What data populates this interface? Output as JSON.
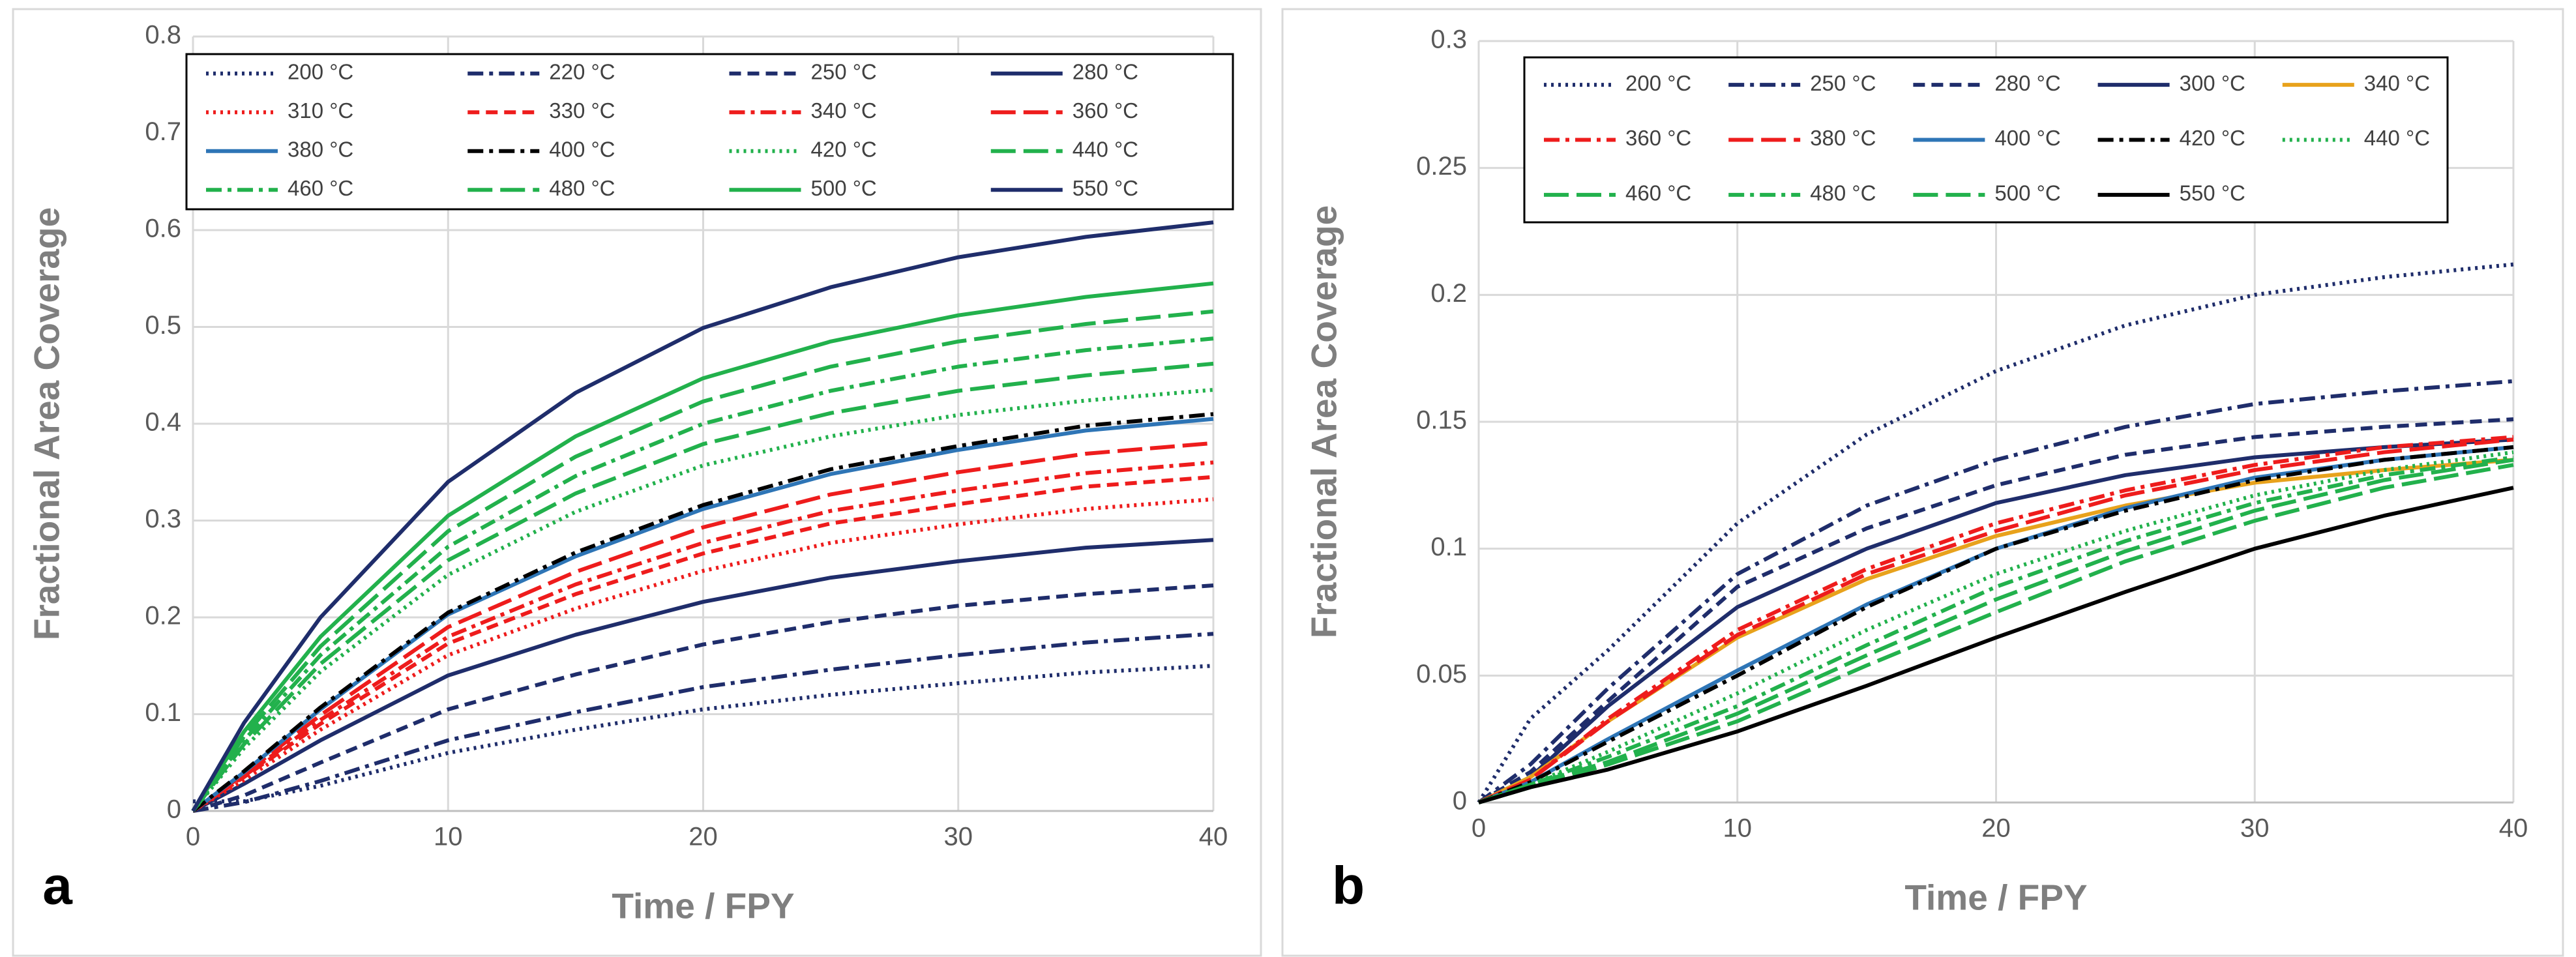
{
  "chart_data": [
    {
      "type": "line",
      "label": "a",
      "xlabel": "Time / FPY",
      "ylabel": "Fractional Area Coverage",
      "x": [
        0,
        2,
        5,
        10,
        15,
        20,
        25,
        30,
        35,
        40
      ],
      "xlim": [
        0,
        40
      ],
      "xticks": [
        0,
        10,
        20,
        30,
        40
      ],
      "ylim": [
        0,
        0.8
      ],
      "yticks": [
        0,
        0.1,
        0.2,
        0.3,
        0.4,
        0.5,
        0.6,
        0.7,
        0.8
      ],
      "grid": true,
      "legend": "top",
      "series": [
        {
          "name": "200 °C",
          "color": "#1f2d6b",
          "dash": "dot",
          "values": [
            0.01,
            0.01,
            0.026,
            0.06,
            0.084,
            0.105,
            0.12,
            0.132,
            0.143,
            0.15
          ]
        },
        {
          "name": "220 °C",
          "color": "#1f2d6b",
          "dash": "dashdot",
          "values": [
            0,
            0.009,
            0.031,
            0.073,
            0.102,
            0.128,
            0.146,
            0.161,
            0.174,
            0.183
          ]
        },
        {
          "name": "250 °C",
          "color": "#1f2d6b",
          "dash": "dash",
          "values": [
            0,
            0.016,
            0.05,
            0.105,
            0.141,
            0.172,
            0.195,
            0.212,
            0.224,
            0.233
          ]
        },
        {
          "name": "280 °C",
          "color": "#1f2d6b",
          "dash": "solid",
          "values": [
            0,
            0.028,
            0.073,
            0.14,
            0.182,
            0.216,
            0.241,
            0.258,
            0.272,
            0.28
          ]
        },
        {
          "name": "310 °C",
          "color": "#ee1c1c",
          "dash": "dot",
          "values": [
            0,
            0.032,
            0.084,
            0.161,
            0.209,
            0.248,
            0.277,
            0.296,
            0.312,
            0.322
          ]
        },
        {
          "name": "330 °C",
          "color": "#ee1c1c",
          "dash": "dash",
          "values": [
            0,
            0.035,
            0.09,
            0.173,
            0.224,
            0.266,
            0.297,
            0.317,
            0.335,
            0.345
          ]
        },
        {
          "name": "340 °C",
          "color": "#ee1c1c",
          "dash": "dashdot",
          "values": [
            0,
            0.036,
            0.094,
            0.18,
            0.234,
            0.277,
            0.31,
            0.331,
            0.349,
            0.36
          ]
        },
        {
          "name": "360 °C",
          "color": "#ee1c1c",
          "dash": "longdash",
          "values": [
            0,
            0.038,
            0.099,
            0.19,
            0.247,
            0.293,
            0.327,
            0.35,
            0.369,
            0.38
          ]
        },
        {
          "name": "380 °C",
          "color": "#2e75b6",
          "dash": "solid",
          "values": [
            0,
            0.04,
            0.105,
            0.203,
            0.263,
            0.312,
            0.348,
            0.373,
            0.393,
            0.405
          ]
        },
        {
          "name": "400 °C",
          "color": "#000000",
          "dash": "dashdot",
          "values": [
            0,
            0.041,
            0.107,
            0.205,
            0.267,
            0.316,
            0.353,
            0.377,
            0.398,
            0.41
          ]
        },
        {
          "name": "420 °C",
          "color": "#22b14c",
          "dash": "dot",
          "values": [
            0,
            0.065,
            0.144,
            0.244,
            0.309,
            0.357,
            0.387,
            0.409,
            0.424,
            0.435
          ]
        },
        {
          "name": "440 °C",
          "color": "#22b14c",
          "dash": "longdash",
          "values": [
            0,
            0.069,
            0.152,
            0.259,
            0.328,
            0.379,
            0.411,
            0.434,
            0.45,
            0.462
          ]
        },
        {
          "name": "460 °C",
          "color": "#22b14c",
          "dash": "dashdot",
          "values": [
            0,
            0.073,
            0.161,
            0.273,
            0.346,
            0.4,
            0.434,
            0.459,
            0.476,
            0.488
          ]
        },
        {
          "name": "480 °C",
          "color": "#22b14c",
          "dash": "longdash",
          "values": [
            0,
            0.077,
            0.17,
            0.289,
            0.366,
            0.423,
            0.459,
            0.485,
            0.503,
            0.516
          ]
        },
        {
          "name": "500 °C",
          "color": "#22b14c",
          "dash": "solid",
          "values": [
            0,
            0.082,
            0.18,
            0.305,
            0.387,
            0.447,
            0.485,
            0.512,
            0.531,
            0.545
          ]
        },
        {
          "name": "550 °C",
          "color": "#1f2d6b",
          "dash": "solid",
          "values": [
            0,
            0.091,
            0.2,
            0.34,
            0.432,
            0.499,
            0.541,
            0.572,
            0.593,
            0.608
          ]
        }
      ]
    },
    {
      "type": "line",
      "label": "b",
      "xlabel": "Time / FPY",
      "ylabel": "Fractional Area Coverage",
      "x": [
        0,
        2,
        5,
        10,
        15,
        20,
        25,
        30,
        35,
        40
      ],
      "xlim": [
        0,
        40
      ],
      "xticks": [
        0,
        10,
        20,
        30,
        40
      ],
      "ylim": [
        0,
        0.3
      ],
      "yticks": [
        0,
        0.05,
        0.1,
        0.15,
        0.2,
        0.25,
        0.3
      ],
      "grid": true,
      "legend": "top",
      "series": [
        {
          "name": "200 °C",
          "color": "#1f2d6b",
          "dash": "dot",
          "values": [
            0,
            0.033,
            0.06,
            0.11,
            0.145,
            0.17,
            0.188,
            0.2,
            0.207,
            0.212
          ]
        },
        {
          "name": "250 °C",
          "color": "#1f2d6b",
          "dash": "dashdot",
          "values": [
            0,
            0.015,
            0.045,
            0.09,
            0.117,
            0.135,
            0.148,
            0.157,
            0.162,
            0.166
          ]
        },
        {
          "name": "280 °C",
          "color": "#1f2d6b",
          "dash": "dash",
          "values": [
            0,
            0.012,
            0.04,
            0.085,
            0.108,
            0.125,
            0.137,
            0.144,
            0.148,
            0.151
          ]
        },
        {
          "name": "300 °C",
          "color": "#1f2d6b",
          "dash": "solid",
          "values": [
            0,
            0.01,
            0.038,
            0.077,
            0.1,
            0.118,
            0.129,
            0.136,
            0.14,
            0.143
          ]
        },
        {
          "name": "340 °C",
          "color": "#e8a21c",
          "dash": "solid",
          "values": [
            0,
            0.01,
            0.032,
            0.065,
            0.088,
            0.105,
            0.117,
            0.126,
            0.131,
            0.135
          ]
        },
        {
          "name": "360 °C",
          "color": "#ee1c1c",
          "dash": "dashdot",
          "values": [
            0,
            0.009,
            0.033,
            0.068,
            0.092,
            0.11,
            0.123,
            0.133,
            0.14,
            0.144
          ]
        },
        {
          "name": "380 °C",
          "color": "#ee1c1c",
          "dash": "longdash",
          "values": [
            0,
            0.009,
            0.032,
            0.066,
            0.09,
            0.107,
            0.121,
            0.131,
            0.138,
            0.143
          ]
        },
        {
          "name": "400 °C",
          "color": "#2e75b6",
          "dash": "solid",
          "values": [
            0,
            0.008,
            0.025,
            0.052,
            0.078,
            0.1,
            0.116,
            0.128,
            0.135,
            0.14
          ]
        },
        {
          "name": "420 °C",
          "color": "#000000",
          "dash": "dashdot",
          "values": [
            0,
            0.008,
            0.024,
            0.05,
            0.077,
            0.1,
            0.115,
            0.127,
            0.135,
            0.14
          ]
        },
        {
          "name": "440 °C",
          "color": "#22b14c",
          "dash": "dot",
          "values": [
            0,
            0.007,
            0.02,
            0.043,
            0.068,
            0.09,
            0.107,
            0.121,
            0.131,
            0.138
          ]
        },
        {
          "name": "460 °C",
          "color": "#22b14c",
          "dash": "longdash",
          "values": [
            0,
            0.007,
            0.016,
            0.035,
            0.058,
            0.08,
            0.099,
            0.115,
            0.127,
            0.135
          ]
        },
        {
          "name": "480 °C",
          "color": "#22b14c",
          "dash": "dashdot",
          "values": [
            0,
            0.007,
            0.018,
            0.038,
            0.062,
            0.085,
            0.103,
            0.118,
            0.129,
            0.136
          ]
        },
        {
          "name": "500 °C",
          "color": "#22b14c",
          "dash": "longdash",
          "values": [
            0,
            0.006,
            0.015,
            0.032,
            0.054,
            0.075,
            0.095,
            0.111,
            0.124,
            0.133
          ]
        },
        {
          "name": "550 °C",
          "color": "#000000",
          "dash": "solid",
          "values": [
            0,
            0.006,
            0.013,
            0.028,
            0.046,
            0.065,
            0.083,
            0.1,
            0.113,
            0.124
          ]
        }
      ]
    }
  ]
}
